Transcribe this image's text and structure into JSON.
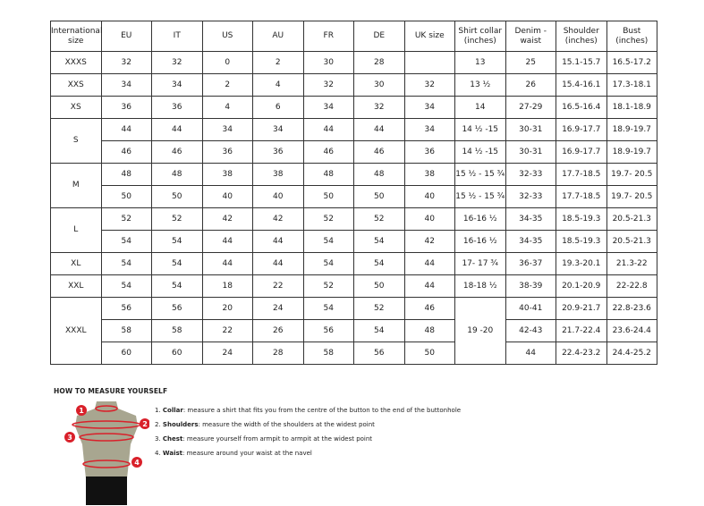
{
  "headers": [
    "International size",
    "EU",
    "IT",
    "US",
    "AU",
    "FR",
    "DE",
    "UK size",
    "Shirt collar (inches)",
    "Denim - waist",
    "Shoulder (inches)",
    "Bust (inches)"
  ],
  "groups": [
    {
      "size": "XXXS",
      "rows": [
        [
          "32",
          "32",
          "0",
          "2",
          "30",
          "28",
          "",
          "13",
          "25",
          "15.1-15.7",
          "16.5-17.2"
        ]
      ]
    },
    {
      "size": "XXS",
      "rows": [
        [
          "34",
          "34",
          "2",
          "4",
          "32",
          "30",
          "32",
          "13 ½",
          "26",
          "15.4-16.1",
          "17.3-18.1"
        ]
      ]
    },
    {
      "size": "XS",
      "rows": [
        [
          "36",
          "36",
          "4",
          "6",
          "34",
          "32",
          "34",
          "14",
          "27-29",
          "16.5-16.4",
          "18.1-18.9"
        ]
      ]
    },
    {
      "size": "S",
      "rows": [
        [
          "44",
          "44",
          "34",
          "34",
          "44",
          "44",
          "34",
          "14 ½ -15",
          "30-31",
          "16.9-17.7",
          "18.9-19.7"
        ],
        [
          "46",
          "46",
          "36",
          "36",
          "46",
          "46",
          "36",
          "14 ½ -15",
          "30-31",
          "16.9-17.7",
          "18.9-19.7"
        ]
      ]
    },
    {
      "size": "M",
      "rows": [
        [
          "48",
          "48",
          "38",
          "38",
          "48",
          "48",
          "38",
          "15 ½ - 15 ¾",
          "32-33",
          "17.7-18.5",
          "19.7- 20.5"
        ],
        [
          "50",
          "50",
          "40",
          "40",
          "50",
          "50",
          "40",
          "15 ½ - 15 ¾",
          "32-33",
          "17.7-18.5",
          "19.7- 20.5"
        ]
      ]
    },
    {
      "size": "L",
      "rows": [
        [
          "52",
          "52",
          "42",
          "42",
          "52",
          "52",
          "40",
          "16-16 ½",
          "34-35",
          "18.5-19.3",
          "20.5-21.3"
        ],
        [
          "54",
          "54",
          "44",
          "44",
          "54",
          "54",
          "42",
          "16-16 ½",
          "34-35",
          "18.5-19.3",
          "20.5-21.3"
        ]
      ]
    },
    {
      "size": "XL",
      "rows": [
        [
          "54",
          "54",
          "44",
          "44",
          "54",
          "54",
          "44",
          "17- 17 ¾",
          "36-37",
          "19.3-20.1",
          "21.3-22"
        ]
      ]
    },
    {
      "size": "XXL",
      "rows": [
        [
          "54",
          "54",
          "18",
          "22",
          "52",
          "50",
          "44",
          "18-18 ½",
          "38-39",
          "20.1-20.9",
          "22-22.8"
        ]
      ]
    },
    {
      "size": "XXXL",
      "collar": "19 -20",
      "rows": [
        [
          "56",
          "56",
          "20",
          "24",
          "54",
          "52",
          "46",
          null,
          "40-41",
          "20.9-21.7",
          "22.8-23.6"
        ],
        [
          "58",
          "58",
          "22",
          "26",
          "56",
          "54",
          "48",
          null,
          "42-43",
          "21.7-22.4",
          "23.6-24.4"
        ],
        [
          "60",
          "60",
          "24",
          "28",
          "58",
          "56",
          "50",
          null,
          "44",
          "22.4-23.2",
          "24.4-25.2"
        ]
      ]
    }
  ],
  "measure": {
    "title": "HOW TO MEASURE YOURSELF",
    "steps": [
      {
        "num": "1.",
        "label": "Collar",
        "text": ": measure a shirt that fits you from the centre of the button to the end of the buttonhole"
      },
      {
        "num": "2.",
        "label": "Shoulders",
        "text": ": measure the width of the shoulders at the widest point"
      },
      {
        "num": "3.",
        "label": "Chest",
        "text": ": measure yourself from armpit to armpit at the widest point"
      },
      {
        "num": "4.",
        "label": "Waist",
        "text": ": measure around your waist at the navel"
      }
    ],
    "markers": [
      "1",
      "2",
      "3",
      "4"
    ],
    "colors": {
      "marker": "#d9202a",
      "torso": "#a8a690",
      "shorts": "#111111"
    }
  }
}
